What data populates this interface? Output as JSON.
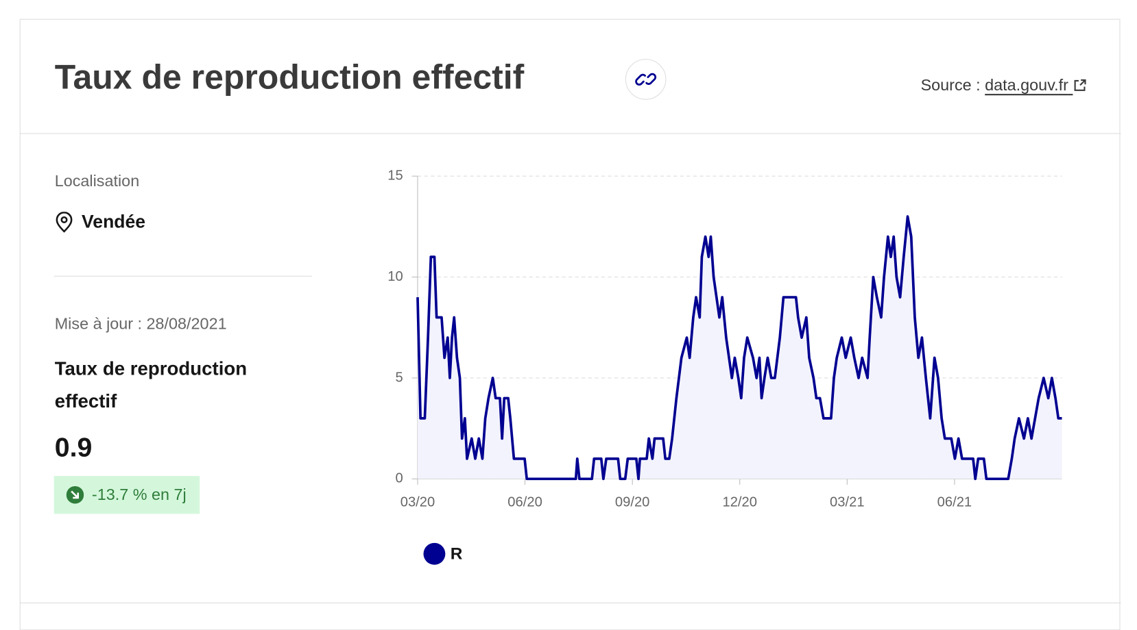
{
  "header": {
    "title": "Taux de reproduction effectif",
    "source_label": "Source :",
    "source_link": "data.gouv.fr"
  },
  "sidebar": {
    "location_label": "Localisation",
    "location": "Vendée",
    "updated": "Mise à jour : 28/08/2021",
    "indicator_title": "Taux de reproduction effectif",
    "value": "0.9",
    "change": "-13.7 % en 7j"
  },
  "chart_data": {
    "type": "line",
    "x": [
      0,
      0.08,
      0.2,
      0.29,
      0.37,
      0.47,
      0.53,
      0.67,
      0.75,
      0.84,
      0.9,
      0.96,
      1.02,
      1.1,
      1.18,
      1.24,
      1.32,
      1.38,
      1.51,
      1.61,
      1.71,
      1.81,
      1.89,
      1.98,
      2.1,
      2.18,
      2.3,
      2.36,
      2.42,
      2.53,
      2.59,
      2.69,
      2.99,
      3.05,
      4.42,
      4.46,
      4.52,
      4.87,
      4.93,
      5.13,
      5.19,
      5.27,
      5.6,
      5.66,
      5.8,
      5.87,
      6.11,
      6.17,
      6.21,
      6.4,
      6.46,
      6.56,
      6.62,
      6.86,
      6.92,
      7.03,
      7.11,
      7.23,
      7.37,
      7.52,
      7.6,
      7.7,
      7.78,
      7.88,
      7.94,
      8.04,
      8.13,
      8.19,
      8.27,
      8.35,
      8.43,
      8.51,
      8.62,
      8.7,
      8.78,
      8.86,
      8.96,
      9.04,
      9.12,
      9.21,
      9.37,
      9.47,
      9.55,
      9.61,
      9.69,
      9.78,
      9.88,
      9.98,
      10.12,
      10.22,
      10.57,
      10.63,
      10.73,
      10.86,
      10.94,
      11.06,
      11.14,
      11.24,
      11.34,
      11.55,
      11.63,
      11.71,
      11.85,
      11.96,
      12.1,
      12.2,
      12.32,
      12.42,
      12.57,
      12.63,
      12.73,
      12.83,
      12.95,
      13.03,
      13.14,
      13.22,
      13.3,
      13.38,
      13.48,
      13.58,
      13.69,
      13.79,
      13.89,
      13.99,
      14.09,
      14.2,
      14.32,
      14.44,
      14.54,
      14.64,
      14.73,
      14.91,
      15.01,
      15.11,
      15.21,
      15.52,
      15.58,
      15.66,
      15.82,
      15.89,
      16.5,
      16.6,
      16.68,
      16.8,
      16.94,
      17.05,
      17.15,
      17.25,
      17.35,
      17.49,
      17.62,
      17.72,
      17.82,
      17.9,
      18
    ],
    "series": [
      {
        "name": "R",
        "color": "#000091",
        "values": [
          9,
          3,
          3,
          7,
          11,
          11,
          8,
          8,
          6,
          7,
          5,
          7,
          8,
          6,
          5,
          2,
          3,
          1,
          2,
          1,
          2,
          1,
          3,
          4,
          5,
          4,
          4,
          2,
          4,
          4,
          3,
          1,
          1,
          0,
          0,
          1,
          0,
          0,
          1,
          1,
          0,
          1,
          1,
          0,
          0,
          1,
          1,
          0,
          1,
          1,
          2,
          1,
          2,
          2,
          1,
          1,
          2,
          4,
          6,
          7,
          6,
          8,
          9,
          8,
          11,
          12,
          11,
          12,
          10,
          9,
          8,
          9,
          7,
          6,
          5,
          6,
          5,
          4,
          6,
          7,
          6,
          5,
          6,
          4,
          5,
          6,
          5,
          5,
          7,
          9,
          9,
          8,
          7,
          8,
          6,
          5,
          4,
          4,
          3,
          3,
          5,
          6,
          7,
          6,
          7,
          6,
          5,
          6,
          5,
          7,
          10,
          9,
          8,
          10,
          12,
          11,
          12,
          10,
          9,
          11,
          13,
          12,
          8,
          6,
          7,
          5,
          3,
          6,
          5,
          3,
          2,
          2,
          1,
          2,
          1,
          1,
          0,
          1,
          1,
          0,
          0,
          1,
          2,
          3,
          2,
          3,
          2,
          3,
          4,
          5,
          4,
          5,
          4,
          3,
          3
        ]
      }
    ],
    "xlim": [
      0,
      18
    ],
    "xticks": [
      {
        "value": 0,
        "label": "03/20"
      },
      {
        "value": 3,
        "label": "06/20"
      },
      {
        "value": 6,
        "label": "09/20"
      },
      {
        "value": 9,
        "label": "12/20"
      },
      {
        "value": 12,
        "label": "03/21"
      },
      {
        "value": 15,
        "label": "06/21"
      }
    ],
    "ylim": [
      0,
      15
    ],
    "yticks": [
      0,
      5,
      10,
      15
    ],
    "grid": true,
    "area_color": "#f3f3fd"
  }
}
